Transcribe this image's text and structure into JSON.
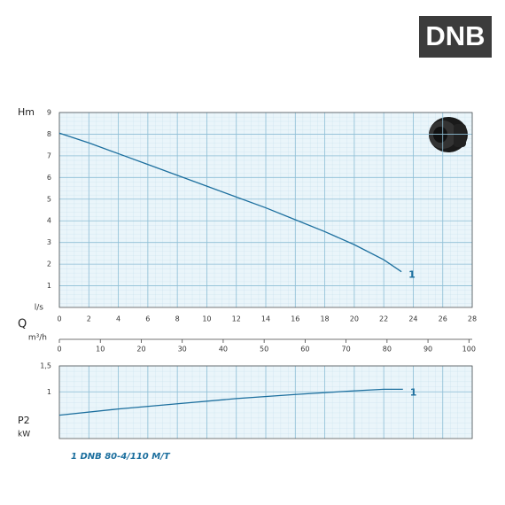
{
  "header": {
    "badge": "DNB"
  },
  "chart_data": [
    {
      "type": "line",
      "ylabel": "Hm",
      "xlabel": "l/s",
      "x2label": "Q",
      "x2unit": "m³/h",
      "xlim": [
        0,
        28
      ],
      "xticks": [
        0,
        2,
        4,
        6,
        8,
        10,
        12,
        14,
        16,
        18,
        20,
        22,
        24,
        26,
        28
      ],
      "ylim": [
        0,
        9
      ],
      "yticks": [
        1,
        2,
        3,
        4,
        5,
        6,
        7,
        8,
        9
      ],
      "x2lim": [
        0,
        100.8
      ],
      "x2ticks": [
        0,
        10,
        20,
        30,
        40,
        50,
        60,
        70,
        80,
        90,
        100
      ],
      "grid": true,
      "series": [
        {
          "name": "1",
          "color": "#1c6f9e",
          "x": [
            0,
            2,
            4,
            6,
            8,
            10,
            12,
            14,
            16,
            18,
            20,
            22,
            23.2
          ],
          "values": [
            8.05,
            7.6,
            7.1,
            6.6,
            6.1,
            5.6,
            5.1,
            4.6,
            4.05,
            3.5,
            2.9,
            2.2,
            1.65
          ]
        }
      ]
    },
    {
      "type": "line",
      "ylabel": "P2",
      "yunit": "kW",
      "xlim": [
        0,
        28
      ],
      "ylim": [
        0.1,
        1.5
      ],
      "yticks": [
        {
          "value": 1.5,
          "label": "1,5"
        },
        1
      ],
      "grid": true,
      "legend_text": "1  DNB 80-4/110 M/T",
      "series": [
        {
          "name": "1",
          "color": "#1c6f9e",
          "x": [
            0,
            4,
            8,
            12,
            16,
            20,
            22,
            23.3
          ],
          "values": [
            0.55,
            0.67,
            0.77,
            0.87,
            0.95,
            1.02,
            1.05,
            1.05
          ]
        }
      ]
    }
  ]
}
